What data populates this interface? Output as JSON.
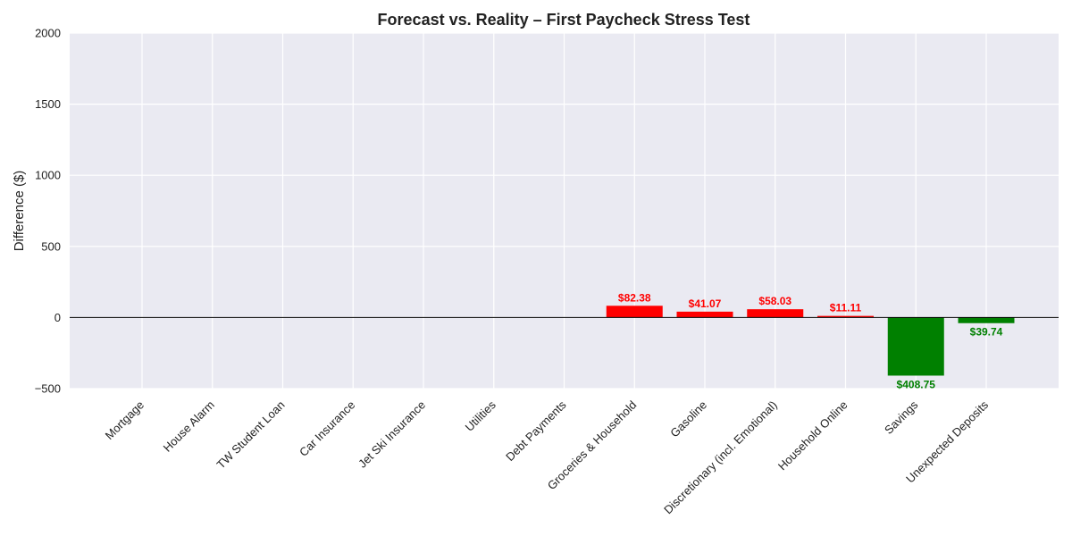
{
  "chart_data": {
    "type": "bar",
    "title": "Forecast vs. Reality – First Paycheck Stress Test",
    "xlabel": "",
    "ylabel": "Difference ($)",
    "ylim": [
      -500,
      2000
    ],
    "yticks": [
      -500,
      0,
      500,
      1000,
      1500,
      2000
    ],
    "ytick_labels": [
      "−500",
      "0",
      "500",
      "1000",
      "1500",
      "2000"
    ],
    "grid": true,
    "categories": [
      "Mortgage",
      "House Alarm",
      "TW Student Loan",
      "Car Insurance",
      "Jet Ski Insurance",
      "Utilities",
      "Debt Payments",
      "Groceries & Household",
      "Gasoline",
      "Discretionary (incl. Emotional)",
      "Household Online",
      "Savings",
      "Unexpected Deposits"
    ],
    "values": [
      0,
      0,
      0,
      0,
      0,
      0,
      0,
      82.38,
      41.07,
      58.03,
      11.11,
      -408.75,
      -39.74
    ],
    "data_labels": [
      "",
      "",
      "",
      "",
      "",
      "",
      "",
      "$82.38",
      "$41.07",
      "$58.03",
      "$11.11",
      "$408.75",
      "$39.74"
    ],
    "colors": {
      "positive": "#ff0000",
      "negative": "#008000",
      "background": "#eaeaf2",
      "grid": "#ffffff",
      "zero_line": "#000000"
    }
  }
}
